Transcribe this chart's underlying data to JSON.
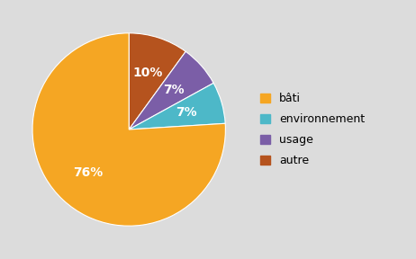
{
  "labels": [
    "bâti",
    "environnement",
    "usage",
    "autre"
  ],
  "values": [
    76,
    7,
    7,
    10
  ],
  "colors": [
    "#F5A623",
    "#4DB8C8",
    "#7B5EA7",
    "#B5531E"
  ],
  "pct_labels": [
    "76%",
    "7%",
    "7%",
    "10%"
  ],
  "background_color": "#DCDCDC",
  "text_color": "#FFFFFF",
  "font_size": 10,
  "legend_labels": [
    "bâti",
    "environnement",
    "usage",
    "autre"
  ],
  "legend_colors": [
    "#F5A623",
    "#4DB8C8",
    "#7B5EA7",
    "#B5531E"
  ]
}
